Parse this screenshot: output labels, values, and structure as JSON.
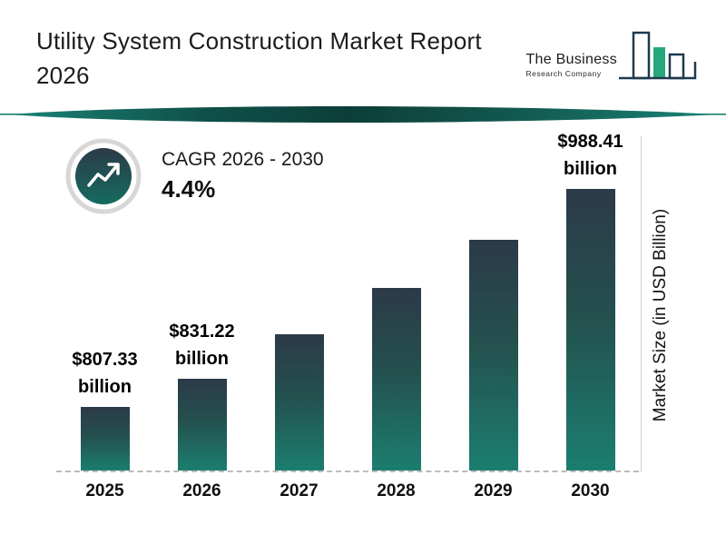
{
  "header": {
    "title_line1": "Utility System Construction Market Report",
    "title_line2": "2026",
    "logo": {
      "name": "The Business",
      "subtitle": "Research Company"
    }
  },
  "cagr": {
    "label": "CAGR 2026 - 2030",
    "value": "4.4%"
  },
  "colors": {
    "teal": "#1B7E6F",
    "dark_slate": "#2C3A48",
    "divider_dark": "#0C3E39",
    "logo_navy": "#1D3A4F",
    "logo_green": "#25A87C"
  },
  "chart_data": {
    "type": "bar",
    "title": "Utility System Construction Market Report 2026",
    "categories": [
      "2025",
      "2026",
      "2027",
      "2028",
      "2029",
      "2030"
    ],
    "values": [
      807.33,
      831.22,
      868,
      906,
      946,
      988.41
    ],
    "estimated": [
      false,
      false,
      true,
      true,
      true,
      false
    ],
    "value_labels": [
      {
        "amount": "$807.33",
        "unit": "billion"
      },
      {
        "amount": "$831.22",
        "unit": "billion"
      },
      null,
      null,
      null,
      {
        "amount": "$988.41",
        "unit": "billion"
      }
    ],
    "xlabel": "",
    "ylabel": "Market Size (in USD Billion)",
    "ylim": [
      755,
      988.41
    ],
    "grid": false,
    "legend": false,
    "bar_gradient": {
      "top": "#2C3A48",
      "bottom": "#1B7E6F"
    }
  }
}
